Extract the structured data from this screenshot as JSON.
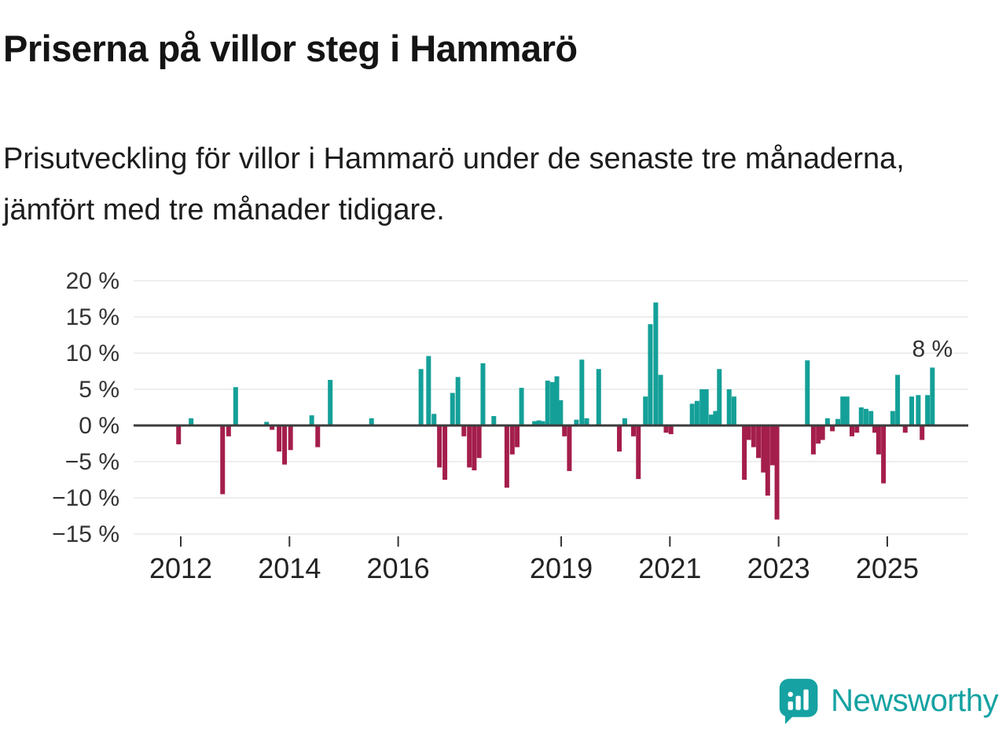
{
  "chart": {
    "title": "Priserna på villor steg i Hammarö",
    "subtitle": "Prisutveckling för villor i Hammarö under de senaste tre månaderna, jämfört med tre månader tidigare."
  },
  "chart_data": {
    "type": "bar",
    "title": "Priserna på villor steg i Hammarö",
    "subtitle": "Prisutveckling för villor i Hammarö under de senaste tre månaderna, jämfört med tre månader tidigare.",
    "xlabel": "",
    "ylabel": "",
    "unit": "%",
    "ylim": [
      -15,
      20
    ],
    "ytick_step": 5,
    "ytick_suffix": " %",
    "xticks": [
      2012,
      2014,
      2016,
      2019,
      2021,
      2023,
      2025
    ],
    "grid": true,
    "legend": "none",
    "colors": {
      "positive": "#14a098",
      "negative": "#a41e4c",
      "zero_line": "#3c3c3c",
      "grid": "#dcdcdc"
    },
    "annotation": {
      "text": "8 %",
      "t": 2025.83,
      "v": 8.0
    },
    "points": [
      [
        2011.96,
        -2.6
      ],
      [
        2012.19,
        1.0
      ],
      [
        2012.77,
        -9.5
      ],
      [
        2012.88,
        -1.5
      ],
      [
        2013.01,
        5.3
      ],
      [
        2013.58,
        0.5
      ],
      [
        2013.68,
        -0.6
      ],
      [
        2013.81,
        -3.6
      ],
      [
        2013.91,
        -5.4
      ],
      [
        2014.02,
        -3.4
      ],
      [
        2014.41,
        1.4
      ],
      [
        2014.52,
        -3.0
      ],
      [
        2014.75,
        6.3
      ],
      [
        2015.51,
        1.0
      ],
      [
        2016.42,
        7.8
      ],
      [
        2016.56,
        9.6
      ],
      [
        2016.66,
        1.6
      ],
      [
        2016.76,
        -5.8
      ],
      [
        2016.86,
        -7.5
      ],
      [
        2017.0,
        4.5
      ],
      [
        2017.1,
        6.7
      ],
      [
        2017.21,
        -1.5
      ],
      [
        2017.31,
        -5.8
      ],
      [
        2017.4,
        -6.2
      ],
      [
        2017.49,
        -4.5
      ],
      [
        2017.56,
        8.6
      ],
      [
        2017.76,
        1.3
      ],
      [
        2018.0,
        -8.6
      ],
      [
        2018.1,
        -4.0
      ],
      [
        2018.19,
        -3.0
      ],
      [
        2018.27,
        5.2
      ],
      [
        2018.51,
        0.6
      ],
      [
        2018.59,
        0.7
      ],
      [
        2018.66,
        0.6
      ],
      [
        2018.75,
        6.2
      ],
      [
        2018.84,
        6.0
      ],
      [
        2018.92,
        6.8
      ],
      [
        2018.99,
        3.5
      ],
      [
        2019.06,
        -1.5
      ],
      [
        2019.15,
        -6.3
      ],
      [
        2019.28,
        0.8
      ],
      [
        2019.38,
        9.1
      ],
      [
        2019.47,
        1.0
      ],
      [
        2019.69,
        7.8
      ],
      [
        2020.07,
        -3.6
      ],
      [
        2020.17,
        1.0
      ],
      [
        2020.33,
        -1.5
      ],
      [
        2020.42,
        -7.4
      ],
      [
        2020.55,
        4.0
      ],
      [
        2020.64,
        14.0
      ],
      [
        2020.74,
        17.0
      ],
      [
        2020.83,
        7.0
      ],
      [
        2020.93,
        -1.0
      ],
      [
        2021.02,
        -1.2
      ],
      [
        2021.41,
        3.0
      ],
      [
        2021.5,
        3.4
      ],
      [
        2021.59,
        5.0
      ],
      [
        2021.67,
        5.0
      ],
      [
        2021.76,
        1.5
      ],
      [
        2021.84,
        2.0
      ],
      [
        2021.91,
        7.8
      ],
      [
        2022.09,
        5.0
      ],
      [
        2022.18,
        4.0
      ],
      [
        2022.37,
        -7.5
      ],
      [
        2022.45,
        -2.0
      ],
      [
        2022.54,
        -3.0
      ],
      [
        2022.63,
        -4.5
      ],
      [
        2022.72,
        -6.5
      ],
      [
        2022.8,
        -9.7
      ],
      [
        2022.89,
        -5.5
      ],
      [
        2022.97,
        -13.0
      ],
      [
        2023.53,
        9.0
      ],
      [
        2023.64,
        -4.0
      ],
      [
        2023.73,
        -2.5
      ],
      [
        2023.81,
        -2.0
      ],
      [
        2023.9,
        1.0
      ],
      [
        2023.99,
        -0.8
      ],
      [
        2024.09,
        0.9
      ],
      [
        2024.18,
        4.0
      ],
      [
        2024.26,
        4.0
      ],
      [
        2024.35,
        -1.5
      ],
      [
        2024.44,
        -1.0
      ],
      [
        2024.52,
        2.5
      ],
      [
        2024.61,
        2.3
      ],
      [
        2024.7,
        2.0
      ],
      [
        2024.77,
        -1.0
      ],
      [
        2024.84,
        -4.0
      ],
      [
        2024.93,
        -8.0
      ],
      [
        2025.1,
        2.0
      ],
      [
        2025.19,
        7.0
      ],
      [
        2025.33,
        -1.0
      ],
      [
        2025.45,
        4.0
      ],
      [
        2025.57,
        4.2
      ],
      [
        2025.64,
        -2.0
      ],
      [
        2025.74,
        4.2
      ],
      [
        2025.83,
        8.0
      ]
    ]
  },
  "footer": {
    "brand": "Newsworthy",
    "brand_color": "#16a2a2"
  }
}
